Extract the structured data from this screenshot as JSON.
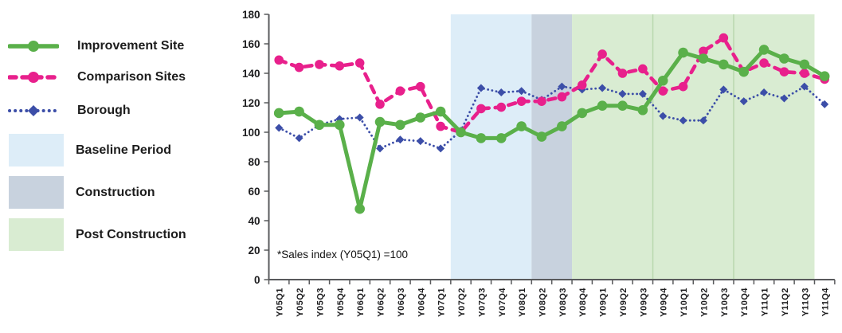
{
  "legend": {
    "items": [
      {
        "label": "Improvement Site",
        "swatch": "line-solid-circle",
        "color": "#5ab04a"
      },
      {
        "label": "Comparison Sites",
        "swatch": "line-dashed-circle",
        "color": "#e8208c"
      },
      {
        "label": "Borough",
        "swatch": "line-dotted-diamond",
        "color": "#3c4ea8"
      },
      {
        "label": "Baseline Period",
        "swatch": "box",
        "color": "#ddedf8"
      },
      {
        "label": "Construction",
        "swatch": "box",
        "color": "#c8d2de"
      },
      {
        "label": "Post Construction",
        "swatch": "box",
        "color": "#d9ecd2"
      }
    ]
  },
  "annotation": "*Sales index (Y05Q1) =100",
  "chart_data": {
    "type": "line",
    "title": "",
    "xlabel": "",
    "ylabel": "",
    "ylim": [
      0,
      180
    ],
    "ytick_step": 20,
    "grid": false,
    "legend_position": "left",
    "categories": [
      "Y05Q1",
      "Y05Q2",
      "Y05Q3",
      "Y05Q4",
      "Y06Q1",
      "Y06Q2",
      "Y06Q3",
      "Y06Q4",
      "Y07Q1",
      "Y07Q2",
      "Y07Q3",
      "Y07Q4",
      "Y08Q1",
      "Y08Q2",
      "Y08Q3",
      "Y08Q4",
      "Y09Q1",
      "Y09Q2",
      "Y09Q3",
      "Y09Q4",
      "Y10Q1",
      "Y10Q2",
      "Y10Q3",
      "Y10Q4",
      "Y11Q1",
      "Y11Q2",
      "Y11Q3",
      "Y11Q4"
    ],
    "series": [
      {
        "name": "Borough",
        "color": "#3c4ea8",
        "line": "dotted",
        "marker": "diamond",
        "values": [
          103,
          96,
          105,
          109,
          110,
          89,
          95,
          94,
          89,
          101,
          130,
          127,
          128,
          122,
          131,
          129,
          130,
          126,
          126,
          111,
          108,
          108,
          129,
          121,
          127,
          123,
          131,
          119
        ]
      },
      {
        "name": "Comparison Sites",
        "color": "#e8208c",
        "line": "dashed",
        "marker": "circle",
        "values": [
          149,
          144,
          146,
          145,
          147,
          119,
          128,
          131,
          104,
          100,
          116,
          117,
          121,
          121,
          124,
          132,
          153,
          140,
          143,
          128,
          131,
          155,
          164,
          141,
          147,
          141,
          140,
          136
        ]
      },
      {
        "name": "Improvement Site",
        "color": "#5ab04a",
        "line": "solid",
        "marker": "circle",
        "values": [
          113,
          114,
          105,
          105,
          48,
          107,
          105,
          110,
          114,
          100,
          96,
          96,
          104,
          97,
          104,
          113,
          118,
          118,
          115,
          135,
          154,
          150,
          146,
          141,
          156,
          150,
          146,
          138
        ]
      }
    ],
    "regions": [
      {
        "name": "Baseline Period",
        "color": "#ddedf8",
        "from": "Y07Q2",
        "to": "Y08Q1"
      },
      {
        "name": "Construction",
        "color": "#c8d2de",
        "from": "Y08Q2",
        "to": "Y08Q3"
      },
      {
        "name": "Post Construction",
        "color": "#d9ecd2",
        "from": "Y08Q4",
        "to": "Y11Q3",
        "dividers": [
          "Y09Q4",
          "Y10Q4"
        ],
        "divider_color": "#b9d8ae"
      }
    ]
  }
}
